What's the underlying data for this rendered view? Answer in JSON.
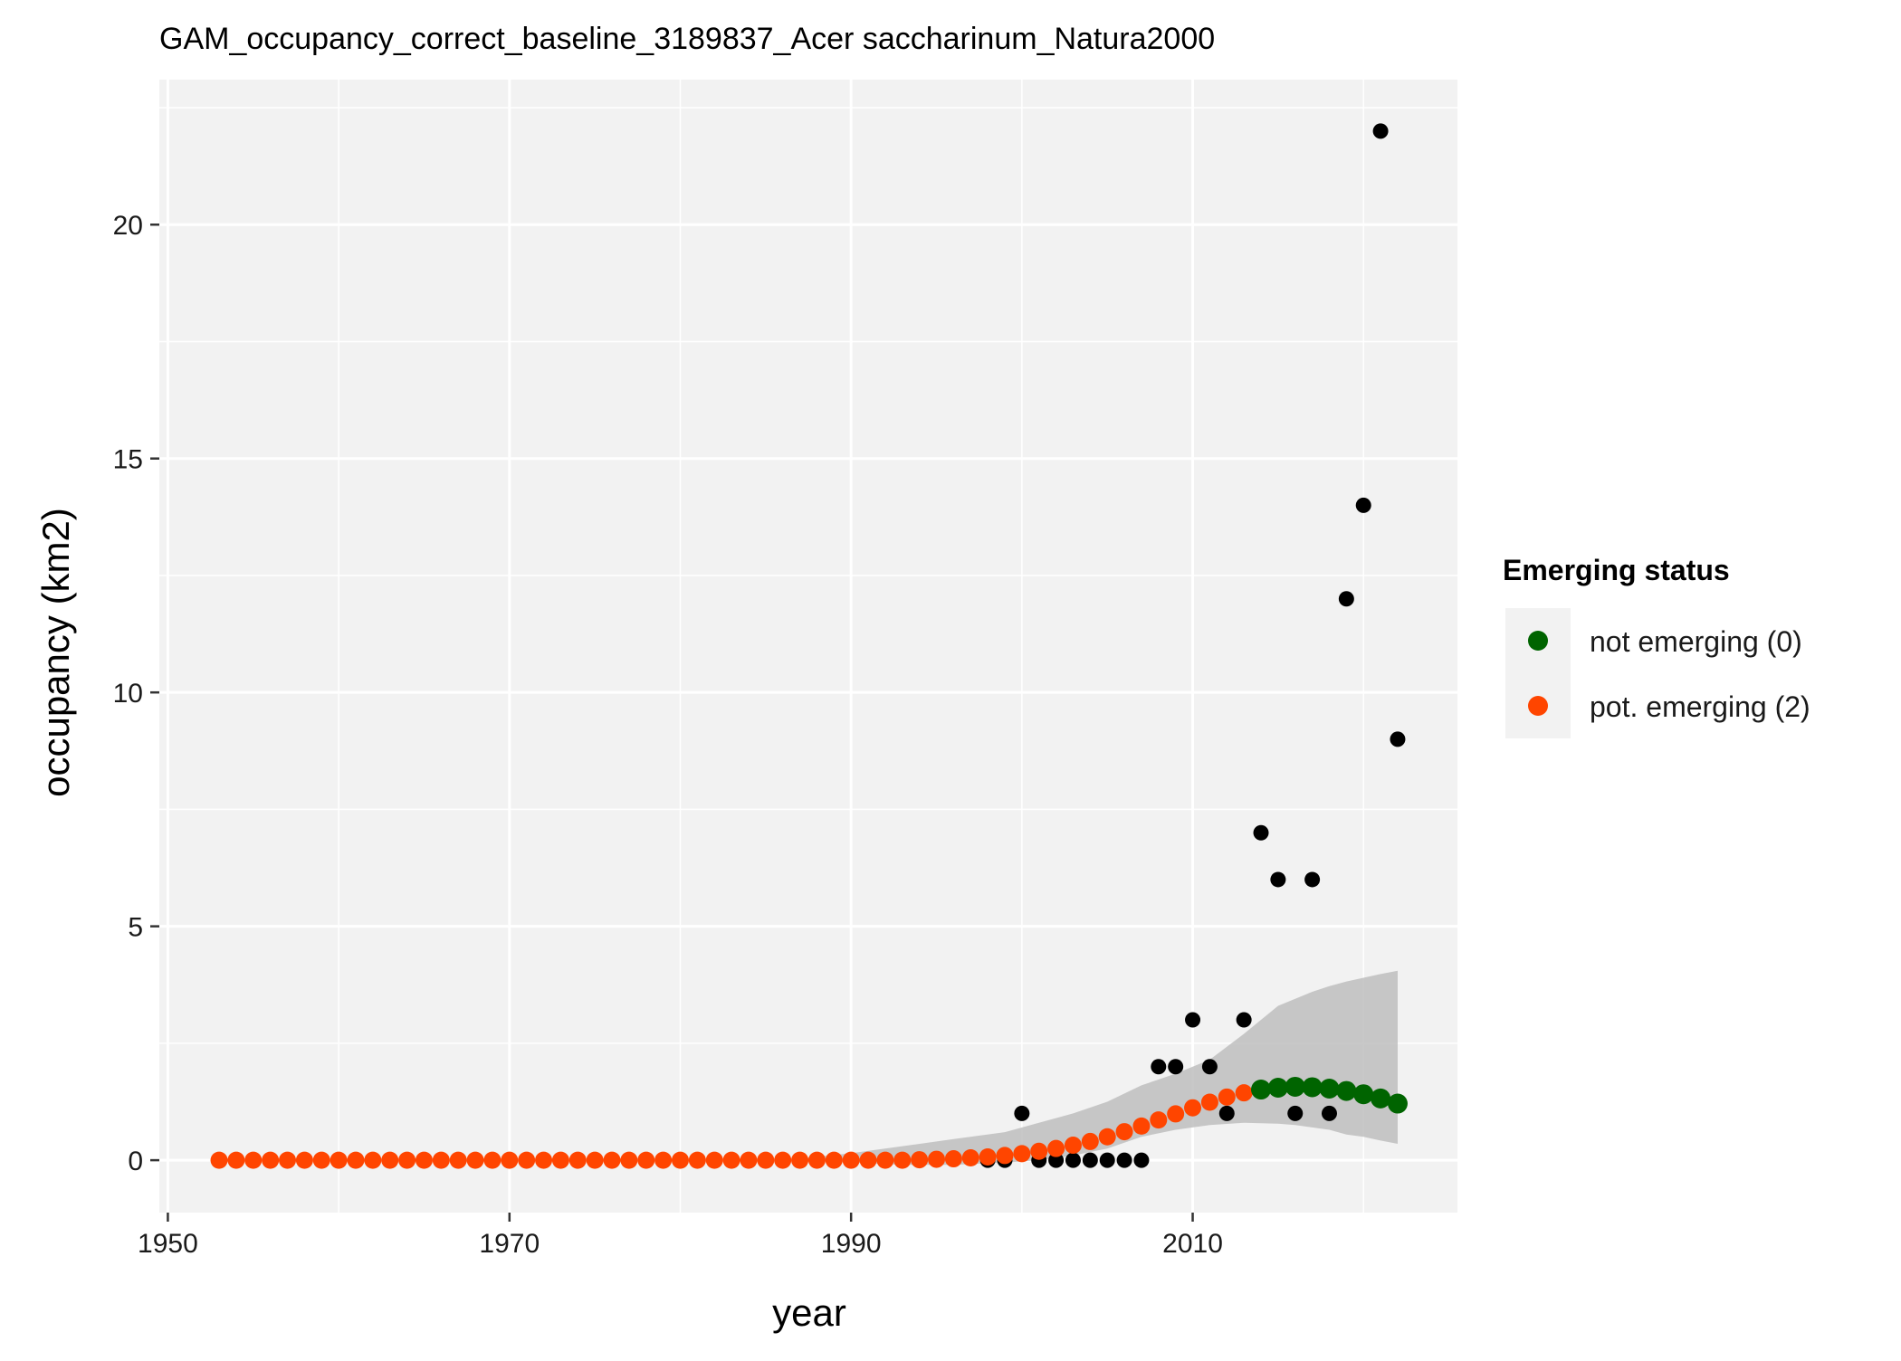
{
  "chart_data": {
    "type": "scatter",
    "title": "GAM_occupancy_correct_baseline_3189837_Acer saccharinum_Natura2000",
    "xlabel": "year",
    "ylabel": "occupancy (km2)",
    "xlim": [
      1949.5,
      2025.5
    ],
    "ylim": [
      -1.12,
      23.1
    ],
    "x_ticks": [
      1950,
      1970,
      1990,
      2010
    ],
    "y_ticks": [
      0,
      5,
      10,
      15,
      20
    ],
    "grid": true,
    "panel_background": "#f2f2f2",
    "legend": {
      "title": "Emerging status",
      "position": "right",
      "entries": [
        {
          "label": "not emerging (0)",
          "color": "#006400"
        },
        {
          "label": "pot. emerging (2)",
          "color": "#ff4500"
        }
      ]
    },
    "observed": {
      "color": "#000000",
      "points": [
        [
          1998,
          0
        ],
        [
          1999,
          0
        ],
        [
          2000,
          1
        ],
        [
          2001,
          0
        ],
        [
          2002,
          0
        ],
        [
          2003,
          0
        ],
        [
          2004,
          0
        ],
        [
          2005,
          0
        ],
        [
          2006,
          0
        ],
        [
          2007,
          0
        ],
        [
          2008,
          2
        ],
        [
          2009,
          2
        ],
        [
          2010,
          3
        ],
        [
          2011,
          2
        ],
        [
          2012,
          1
        ],
        [
          2013,
          3
        ],
        [
          2014,
          7
        ],
        [
          2015,
          6
        ],
        [
          2016,
          1
        ],
        [
          2017,
          6
        ],
        [
          2018,
          1
        ],
        [
          2019,
          12
        ],
        [
          2020,
          14
        ],
        [
          2021,
          22
        ],
        [
          2022,
          9
        ]
      ]
    },
    "fitted": {
      "x": [
        1953,
        1954,
        1955,
        1956,
        1957,
        1958,
        1959,
        1960,
        1961,
        1962,
        1963,
        1964,
        1965,
        1966,
        1967,
        1968,
        1969,
        1970,
        1971,
        1972,
        1973,
        1974,
        1975,
        1976,
        1977,
        1978,
        1979,
        1980,
        1981,
        1982,
        1983,
        1984,
        1985,
        1986,
        1987,
        1988,
        1989,
        1990,
        1991,
        1992,
        1993,
        1994,
        1995,
        1996,
        1997,
        1998,
        1999,
        2000,
        2001,
        2002,
        2003,
        2004,
        2005,
        2006,
        2007,
        2008,
        2009,
        2010,
        2011,
        2012,
        2013,
        2014,
        2015,
        2016,
        2017,
        2018,
        2019,
        2020,
        2021,
        2022
      ],
      "y": [
        0,
        0,
        0,
        0,
        0,
        0,
        0,
        0,
        0,
        0,
        0,
        0,
        0,
        0,
        0,
        0,
        0,
        0,
        0,
        0,
        0,
        0,
        0,
        0,
        0,
        0,
        0,
        0,
        0,
        0,
        0,
        0,
        0,
        0,
        0,
        0,
        0,
        0,
        0,
        0,
        0,
        0.01,
        0.02,
        0.03,
        0.05,
        0.07,
        0.1,
        0.14,
        0.19,
        0.25,
        0.32,
        0.4,
        0.5,
        0.61,
        0.73,
        0.86,
        0.99,
        1.12,
        1.24,
        1.35,
        1.44,
        1.51,
        1.55,
        1.57,
        1.56,
        1.53,
        1.48,
        1.41,
        1.32,
        1.21
      ],
      "status": [
        "pot. emerging (2)",
        "pot. emerging (2)",
        "pot. emerging (2)",
        "pot. emerging (2)",
        "pot. emerging (2)",
        "pot. emerging (2)",
        "pot. emerging (2)",
        "pot. emerging (2)",
        "pot. emerging (2)",
        "pot. emerging (2)",
        "pot. emerging (2)",
        "pot. emerging (2)",
        "pot. emerging (2)",
        "pot. emerging (2)",
        "pot. emerging (2)",
        "pot. emerging (2)",
        "pot. emerging (2)",
        "pot. emerging (2)",
        "pot. emerging (2)",
        "pot. emerging (2)",
        "pot. emerging (2)",
        "pot. emerging (2)",
        "pot. emerging (2)",
        "pot. emerging (2)",
        "pot. emerging (2)",
        "pot. emerging (2)",
        "pot. emerging (2)",
        "pot. emerging (2)",
        "pot. emerging (2)",
        "pot. emerging (2)",
        "pot. emerging (2)",
        "pot. emerging (2)",
        "pot. emerging (2)",
        "pot. emerging (2)",
        "pot. emerging (2)",
        "pot. emerging (2)",
        "pot. emerging (2)",
        "pot. emerging (2)",
        "pot. emerging (2)",
        "pot. emerging (2)",
        "pot. emerging (2)",
        "pot. emerging (2)",
        "pot. emerging (2)",
        "pot. emerging (2)",
        "pot. emerging (2)",
        "pot. emerging (2)",
        "pot. emerging (2)",
        "pot. emerging (2)",
        "pot. emerging (2)",
        "pot. emerging (2)",
        "pot. emerging (2)",
        "pot. emerging (2)",
        "pot. emerging (2)",
        "pot. emerging (2)",
        "pot. emerging (2)",
        "pot. emerging (2)",
        "pot. emerging (2)",
        "pot. emerging (2)",
        "pot. emerging (2)",
        "pot. emerging (2)",
        "pot. emerging (2)",
        "not emerging (0)",
        "not emerging (0)",
        "not emerging (0)",
        "not emerging (0)",
        "not emerging (0)",
        "not emerging (0)",
        "not emerging (0)",
        "not emerging (0)",
        "not emerging (0)"
      ]
    },
    "confidence_band": {
      "color": "#bebebe",
      "points": [
        [
          1987,
          0.0,
          0.04
        ],
        [
          1990,
          -0.05,
          0.15
        ],
        [
          1993,
          -0.1,
          0.3
        ],
        [
          1996,
          -0.1,
          0.45
        ],
        [
          1999,
          -0.05,
          0.6
        ],
        [
          2001,
          0.0,
          0.8
        ],
        [
          2003,
          0.1,
          1.0
        ],
        [
          2005,
          0.25,
          1.25
        ],
        [
          2007,
          0.5,
          1.6
        ],
        [
          2009,
          0.65,
          1.85
        ],
        [
          2011,
          0.75,
          2.15
        ],
        [
          2013,
          0.8,
          2.7
        ],
        [
          2015,
          0.78,
          3.3
        ],
        [
          2016,
          0.75,
          3.45
        ],
        [
          2017,
          0.7,
          3.6
        ],
        [
          2018,
          0.65,
          3.72
        ],
        [
          2019,
          0.55,
          3.82
        ],
        [
          2020,
          0.5,
          3.9
        ],
        [
          2021,
          0.42,
          3.98
        ],
        [
          2022,
          0.35,
          4.05
        ]
      ]
    }
  }
}
